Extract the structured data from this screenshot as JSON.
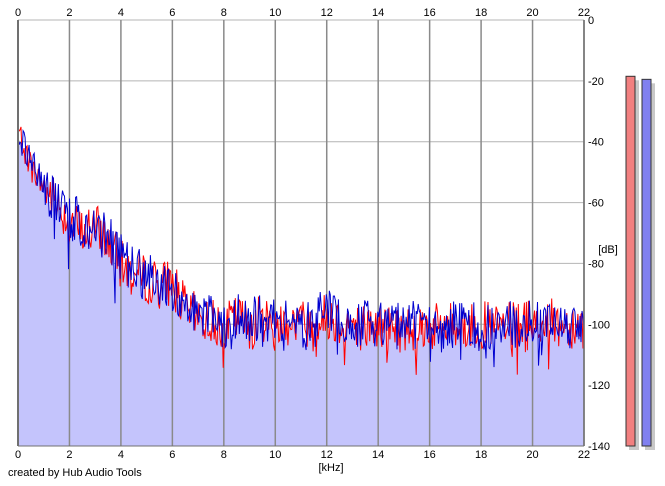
{
  "credit": "created by Hub Audio Tools",
  "chart_data": {
    "type": "line",
    "title": "",
    "xlabel": "[kHz]",
    "ylabel": "[dB]",
    "xlim": [
      0,
      22
    ],
    "ylim": [
      -140,
      0
    ],
    "x_ticks": [
      "0",
      "2",
      "4",
      "6",
      "8",
      "10",
      "12",
      "14",
      "16",
      "18",
      "20",
      "22"
    ],
    "y_ticks": [
      "0",
      "-20",
      "-40",
      "-60",
      "-80",
      "-100",
      "-120",
      "-140"
    ],
    "grid": true,
    "colors": {
      "red": "#ff0000",
      "blue": "#0000d0",
      "fill": "#c4c4fc",
      "meter_red": "#f28080",
      "meter_blue": "#8080f0"
    },
    "series": [
      {
        "x": [
          0,
          0.5,
          1,
          1.5,
          2,
          2.5,
          3,
          3.5,
          4,
          4.5,
          5,
          5.5,
          6,
          6.5,
          7,
          7.5,
          8,
          8.5,
          9,
          9.5,
          10,
          10.5,
          11,
          11.5,
          12,
          12.5,
          13,
          13.5,
          14,
          14.5,
          15,
          15.5,
          16,
          16.5,
          17,
          17.5,
          18,
          18.5,
          19,
          19.5,
          20,
          20.5,
          21,
          21.5,
          22
        ],
        "values": [
          -36,
          -48,
          -55,
          -60,
          -66,
          -70,
          -68,
          -73,
          -80,
          -84,
          -85,
          -87,
          -86,
          -95,
          -98,
          -99,
          -101,
          -98,
          -100,
          -98,
          -100,
          -99,
          -99,
          -101,
          -97,
          -99,
          -100,
          -101,
          -101,
          -101,
          -102,
          -100,
          -101,
          -101,
          -100,
          -101,
          -100,
          -101,
          -101,
          -100,
          -100,
          -99,
          -100,
          -100,
          -100
        ]
      },
      {
        "x": [
          0,
          0.5,
          1,
          1.5,
          2,
          2.5,
          3,
          3.5,
          4,
          4.5,
          5,
          5.5,
          6,
          6.5,
          7,
          7.5,
          8,
          8.5,
          9,
          9.5,
          10,
          10.5,
          11,
          11.5,
          12,
          12.5,
          13,
          13.5,
          14,
          14.5,
          15,
          15.5,
          16,
          16.5,
          17,
          17.5,
          18,
          18.5,
          19,
          19.5,
          20,
          20.5,
          21,
          21.5,
          22
        ],
        "values": [
          -37,
          -47,
          -54,
          -61,
          -64,
          -67,
          -69,
          -72,
          -78,
          -82,
          -84,
          -87,
          -89,
          -93,
          -96,
          -98,
          -100,
          -97,
          -99,
          -98,
          -99,
          -99,
          -100,
          -100,
          -94,
          -99,
          -100,
          -100,
          -101,
          -100,
          -101,
          -100,
          -100,
          -101,
          -100,
          -100,
          -101,
          -100,
          -100,
          -100,
          -100,
          -100,
          -100,
          -101,
          -100
        ]
      }
    ],
    "meters": [
      {
        "value": -18.5
      },
      {
        "value": -19.5
      }
    ]
  }
}
